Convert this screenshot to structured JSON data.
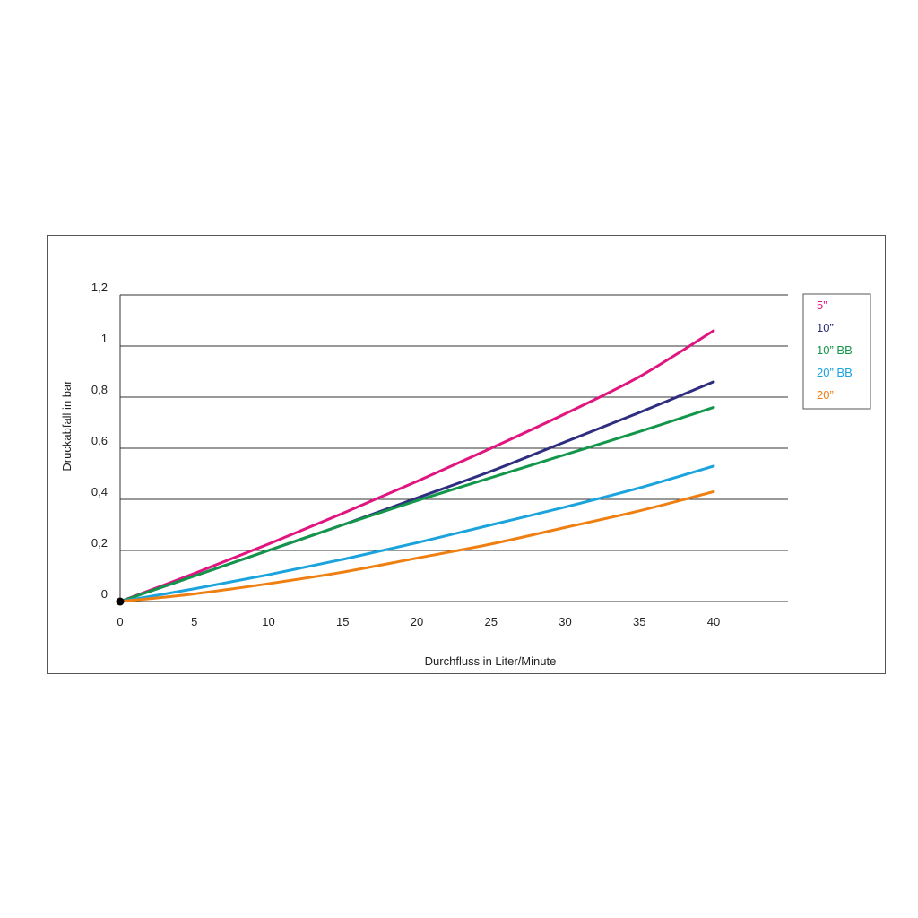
{
  "chart_data": {
    "type": "line",
    "xlabel": "Durchfluss in Liter/Minute",
    "ylabel": "Druckabfall in bar",
    "xlim": [
      0,
      45
    ],
    "ylim": [
      0,
      1.2
    ],
    "x_ticks": [
      "0",
      "5",
      "10",
      "15",
      "20",
      "25",
      "30",
      "35",
      "40"
    ],
    "x_tick_values": [
      0,
      5,
      10,
      15,
      20,
      25,
      30,
      35,
      40
    ],
    "y_ticks": [
      "0",
      "0,2",
      "0,4",
      "0,6",
      "0,8",
      "1",
      "1,2"
    ],
    "y_tick_values": [
      0,
      0.2,
      0.4,
      0.6,
      0.8,
      1.0,
      1.2
    ],
    "grid": "horizontal",
    "legend_position": "top-right",
    "x": [
      0,
      5,
      10,
      15,
      20,
      25,
      30,
      35,
      40
    ],
    "series": [
      {
        "name": "5”",
        "color": "#e0157f",
        "values": [
          0,
          0.11,
          0.225,
          0.345,
          0.47,
          0.6,
          0.735,
          0.88,
          1.06
        ]
      },
      {
        "name": "10”",
        "color": "#2e2d7f",
        "values": [
          0,
          0.1,
          0.2,
          0.3,
          0.405,
          0.51,
          0.625,
          0.74,
          0.86
        ]
      },
      {
        "name": "10” BB",
        "color": "#12964a",
        "values": [
          0,
          0.1,
          0.2,
          0.3,
          0.395,
          0.485,
          0.575,
          0.665,
          0.76
        ]
      },
      {
        "name": "20” BB",
        "color": "#1aa3dc",
        "values": [
          0,
          0.05,
          0.105,
          0.165,
          0.23,
          0.3,
          0.37,
          0.445,
          0.53
        ]
      },
      {
        "name": "20”",
        "color": "#f07f12",
        "values": [
          0,
          0.03,
          0.07,
          0.115,
          0.17,
          0.225,
          0.29,
          0.355,
          0.43
        ]
      }
    ]
  }
}
